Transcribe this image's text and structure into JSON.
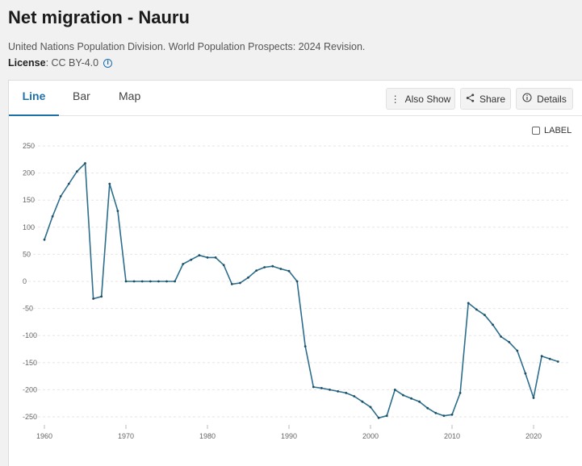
{
  "header": {
    "title": "Net migration - Nauru",
    "source": "United Nations Population Division. World Population Prospects: 2024 Revision.",
    "license_label": "License",
    "license_value": " : CC BY-4.0",
    "info_icon": "info-icon"
  },
  "tabs": [
    {
      "label": "Line",
      "active": true
    },
    {
      "label": "Bar",
      "active": false
    },
    {
      "label": "Map",
      "active": false
    }
  ],
  "toolbar": {
    "also_show_label": "Also Show",
    "share_label": "Share",
    "details_label": "Details"
  },
  "label_toggle": {
    "label": "LABEL",
    "checked": false
  },
  "chart_data": {
    "type": "line",
    "title": "",
    "xlabel": "",
    "ylabel": "",
    "ylim": [
      -250,
      250
    ],
    "xlim": [
      1960,
      2023
    ],
    "y_ticks": [
      250,
      200,
      150,
      100,
      50,
      0,
      -50,
      -100,
      -150,
      -200,
      -250
    ],
    "x_ticks": [
      1960,
      1970,
      1980,
      1990,
      2000,
      2010,
      2020
    ],
    "grid": "horizontal-dashed",
    "line_color": "#2c6e8c",
    "series": [
      {
        "x": [
          1960,
          1961,
          1962,
          1963,
          1964,
          1965,
          1966,
          1967,
          1968,
          1969,
          1970,
          1971,
          1972,
          1973,
          1974,
          1975,
          1976,
          1977,
          1978,
          1979,
          1980,
          1981,
          1982,
          1983,
          1984,
          1985,
          1986,
          1987,
          1988,
          1989,
          1990,
          1991,
          1992,
          1993,
          1994,
          1995,
          1996,
          1997,
          1998,
          1999,
          2000,
          2001,
          2002,
          2003,
          2004,
          2005,
          2006,
          2007,
          2008,
          2009,
          2010,
          2011,
          2012,
          2013,
          2014,
          2015,
          2016,
          2017,
          2018,
          2019,
          2020,
          2021,
          2022,
          2023
        ],
        "values": [
          77,
          120,
          157,
          180,
          203,
          218,
          -32,
          -28,
          180,
          130,
          0,
          0,
          0,
          0,
          0,
          0,
          0,
          32,
          40,
          48,
          44,
          44,
          30,
          -5,
          -3,
          7,
          20,
          26,
          28,
          23,
          19,
          0,
          -120,
          -195,
          -197,
          -200,
          -203,
          -206,
          -212,
          -222,
          -232,
          -252,
          -248,
          -200,
          -210,
          -216,
          -222,
          -234,
          -243,
          -248,
          -246,
          -206,
          -40,
          -52,
          -62,
          -80,
          -102,
          -112,
          -128,
          -170,
          -215,
          -138,
          -143,
          -148
        ]
      }
    ]
  }
}
